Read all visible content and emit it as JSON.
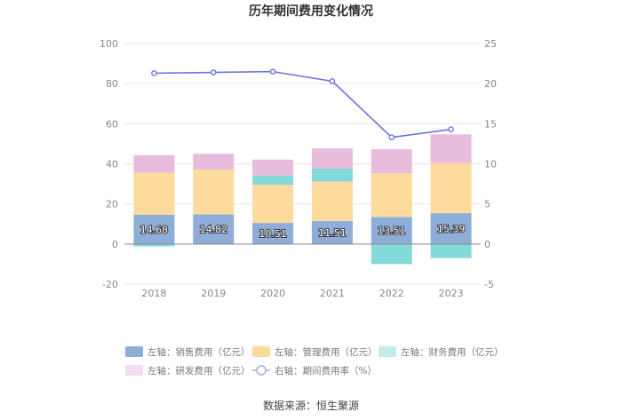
{
  "chart_data": {
    "type": "bar",
    "title": "历年期间费用变化情况",
    "categories": [
      "2018",
      "2019",
      "2020",
      "2021",
      "2022",
      "2023"
    ],
    "left_axis": {
      "min": -20,
      "max": 100,
      "ticks": [
        -20,
        0,
        20,
        40,
        60,
        80,
        100
      ]
    },
    "right_axis": {
      "min": -5,
      "max": 25,
      "ticks": [
        -5,
        0,
        5,
        10,
        15,
        20,
        25
      ]
    },
    "series": [
      {
        "name": "左轴：销售费用（亿元）",
        "kind": "stacked-bar",
        "axis": "left",
        "color": "#8fadd9",
        "values": [
          14.68,
          14.82,
          10.51,
          11.51,
          13.51,
          15.39
        ],
        "show_labels": true
      },
      {
        "name": "左轴：管理费用（亿元）",
        "kind": "stacked-bar",
        "axis": "left",
        "color": "#fcdb9c",
        "values": [
          20.8,
          22.3,
          19.1,
          19.6,
          21.7,
          25.0
        ],
        "show_labels": false
      },
      {
        "name": "左轴：财务费用（亿元）",
        "kind": "stacked-bar",
        "axis": "left",
        "color": "#84d9d9",
        "values": [
          -1.2,
          0.0,
          4.5,
          6.6,
          -10.0,
          -7.0
        ],
        "show_labels": false
      },
      {
        "name": "左轴：研发费用（亿元）",
        "kind": "stacked-bar",
        "axis": "left",
        "color": "#e8bcdc",
        "values": [
          8.8,
          7.9,
          8.0,
          10.0,
          12.1,
          14.3
        ],
        "show_labels": false
      },
      {
        "name": "右轴：期间费用率（%）",
        "kind": "line",
        "axis": "right",
        "color": "#6b72e6",
        "values": [
          21.3,
          21.4,
          21.5,
          20.3,
          13.3,
          14.3
        ]
      }
    ],
    "legend_position": "bottom",
    "grid": true
  },
  "legend_colors": {
    "sales": "#8fadd9",
    "admin": "#fcdb9c",
    "finance": "#c2ebeb",
    "rd": "#f3dcee",
    "rate": "#a8ace8"
  },
  "source": "数据来源：恒生聚源"
}
